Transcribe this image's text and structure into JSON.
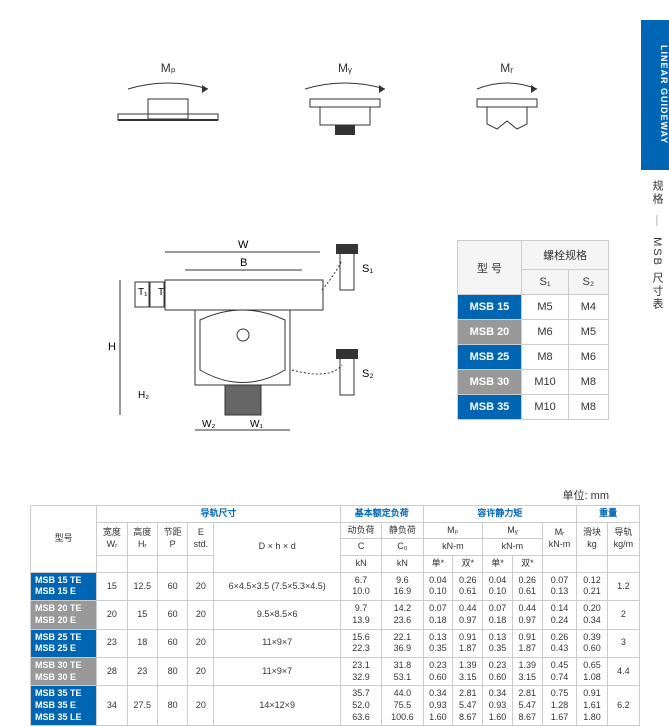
{
  "sidebar": {
    "tab_label": "LINEAR GUIDEWAY",
    "section_label_1": "规格",
    "section_label_2": "MSB 尺寸表"
  },
  "diagrams": {
    "mp": "Mₚ",
    "my": "Mᵧ",
    "mr": "Mᵣ",
    "dim_W": "W",
    "dim_B": "B",
    "dim_H": "H",
    "dim_T1": "T₁",
    "dim_T": "T",
    "dim_H2": "H₂",
    "dim_W2": "W₂",
    "dim_W1": "W₁",
    "dim_S1": "S₁",
    "dim_S2": "S₂"
  },
  "bolt_table": {
    "header_model": "型 号",
    "header_spec": "螺栓规格",
    "col_s1": "S₁",
    "col_s2": "S₂",
    "rows": [
      {
        "model": "MSB 15",
        "s1": "M5",
        "s2": "M4",
        "cls": "blue-cell"
      },
      {
        "model": "MSB 20",
        "s1": "M6",
        "s2": "M5",
        "cls": "gray-cell"
      },
      {
        "model": "MSB 25",
        "s1": "M8",
        "s2": "M6",
        "cls": "blue-cell"
      },
      {
        "model": "MSB 30",
        "s1": "M10",
        "s2": "M8",
        "cls": "gray-cell"
      },
      {
        "model": "MSB 35",
        "s1": "M10",
        "s2": "M8",
        "cls": "blue-cell"
      }
    ]
  },
  "unit": "单位: mm",
  "main_table": {
    "hdr_model": "型号",
    "grp_rail": "导轨尺寸",
    "grp_load": "基本额定负荷",
    "grp_moment": "容许静力矩",
    "grp_weight": "重量",
    "col_wt": "宽度",
    "col_wt_sub": "Wᵣ",
    "col_ht": "高度",
    "col_ht_sub": "Hᵣ",
    "col_p": "节距",
    "col_p_sub": "P",
    "col_e": "E",
    "col_e_sub": "std.",
    "col_dhd": "D × h × d",
    "col_dyn": "动负荷",
    "col_dyn_sub": "C",
    "col_stat": "静负荷",
    "col_stat_sub": "C₀",
    "col_kn": "kN",
    "col_mp": "Mₚ",
    "col_my": "Mᵧ",
    "col_mr": "Mᵣ",
    "col_knm": "kN-m",
    "col_single": "单*",
    "col_double": "双*",
    "col_block": "滑块",
    "col_rail": "导轨",
    "col_kg": "kg",
    "col_kgm": "kg/m",
    "rows": [
      {
        "models": [
          "MSB 15 TE",
          "MSB 15 E"
        ],
        "cls": "row-blue",
        "wt": "15",
        "ht": "12.5",
        "p": "60",
        "e": "20",
        "dhd": "6×4.5×3.5\n(7.5×5.3×4.5)",
        "c": [
          "6.7",
          "10.0"
        ],
        "c0": [
          "9.6",
          "16.9"
        ],
        "mp_s": [
          "0.04",
          "0.10"
        ],
        "mp_d": [
          "0.26",
          "0.61"
        ],
        "my_s": [
          "0.04",
          "0.10"
        ],
        "my_d": [
          "0.26",
          "0.61"
        ],
        "mr": [
          "0.07",
          "0.13"
        ],
        "blk": [
          "0.12",
          "0.21"
        ],
        "rail": "1.2"
      },
      {
        "models": [
          "MSB 20 TE",
          "MSB 20 E"
        ],
        "cls": "row-gray",
        "wt": "20",
        "ht": "15",
        "p": "60",
        "e": "20",
        "dhd": "9.5×8.5×6",
        "c": [
          "9.7",
          "13.9"
        ],
        "c0": [
          "14.2",
          "23.6"
        ],
        "mp_s": [
          "0.07",
          "0.18"
        ],
        "mp_d": [
          "0.44",
          "0.97"
        ],
        "my_s": [
          "0.07",
          "0.18"
        ],
        "my_d": [
          "0.44",
          "0.97"
        ],
        "mr": [
          "0.14",
          "0.24"
        ],
        "blk": [
          "0.20",
          "0.34"
        ],
        "rail": "2"
      },
      {
        "models": [
          "MSB 25 TE",
          "MSB 25 E"
        ],
        "cls": "row-blue",
        "wt": "23",
        "ht": "18",
        "p": "60",
        "e": "20",
        "dhd": "11×9×7",
        "c": [
          "15.6",
          "22.3"
        ],
        "c0": [
          "22.1",
          "36.9"
        ],
        "mp_s": [
          "0.13",
          "0.35"
        ],
        "mp_d": [
          "0.91",
          "1.87"
        ],
        "my_s": [
          "0.13",
          "0.35"
        ],
        "my_d": [
          "0.91",
          "1.87"
        ],
        "mr": [
          "0.26",
          "0.43"
        ],
        "blk": [
          "0.39",
          "0.60"
        ],
        "rail": "3"
      },
      {
        "models": [
          "MSB 30 TE",
          "MSB 30 E"
        ],
        "cls": "row-gray",
        "wt": "28",
        "ht": "23",
        "p": "80",
        "e": "20",
        "dhd": "11×9×7",
        "c": [
          "23.1",
          "32.9"
        ],
        "c0": [
          "31.8",
          "53.1"
        ],
        "mp_s": [
          "0.23",
          "0.60"
        ],
        "mp_d": [
          "1.39",
          "3.15"
        ],
        "my_s": [
          "0.23",
          "0.60"
        ],
        "my_d": [
          "1.39",
          "3.15"
        ],
        "mr": [
          "0.45",
          "0.74"
        ],
        "blk": [
          "0.65",
          "1.08"
        ],
        "rail": "4.4"
      },
      {
        "models": [
          "MSB 35 TE",
          "MSB 35 E",
          "MSB 35 LE"
        ],
        "cls": "row-blue",
        "wt": "34",
        "ht": "27.5",
        "p": "80",
        "e": "20",
        "dhd": "14×12×9",
        "c": [
          "35.7",
          "52.0",
          "63.6"
        ],
        "c0": [
          "44.0",
          "75.5",
          "100.6"
        ],
        "mp_s": [
          "0.34",
          "0.93",
          "1.60"
        ],
        "mp_d": [
          "2.81",
          "5.47",
          "8.67"
        ],
        "my_s": [
          "0.34",
          "0.93",
          "1.60"
        ],
        "my_d": [
          "2.81",
          "5.47",
          "8.67"
        ],
        "mr": [
          "0.75",
          "1.28",
          "1.67"
        ],
        "blk": [
          "0.91",
          "1.61",
          "1.80"
        ],
        "rail": "6.2"
      }
    ]
  }
}
